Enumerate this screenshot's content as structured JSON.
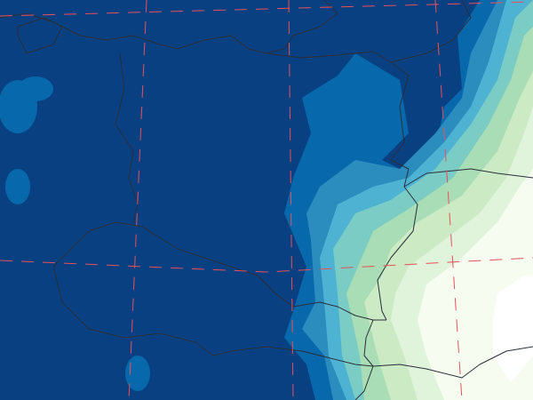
{
  "map": {
    "type": "filled-contour field map",
    "colormap": "GnBu (reversed)",
    "palette": [
      "#084081",
      "#0868ac",
      "#2b8cbe",
      "#4eb3d3",
      "#7bccc4",
      "#a8ddb5",
      "#ccebc5",
      "#e0f3db",
      "#f7fcf0",
      "#ffffff"
    ],
    "border_color": "#2a2f3a",
    "graticule_color": "#e8505b",
    "graticule_style": "dashed",
    "legend": "none"
  }
}
